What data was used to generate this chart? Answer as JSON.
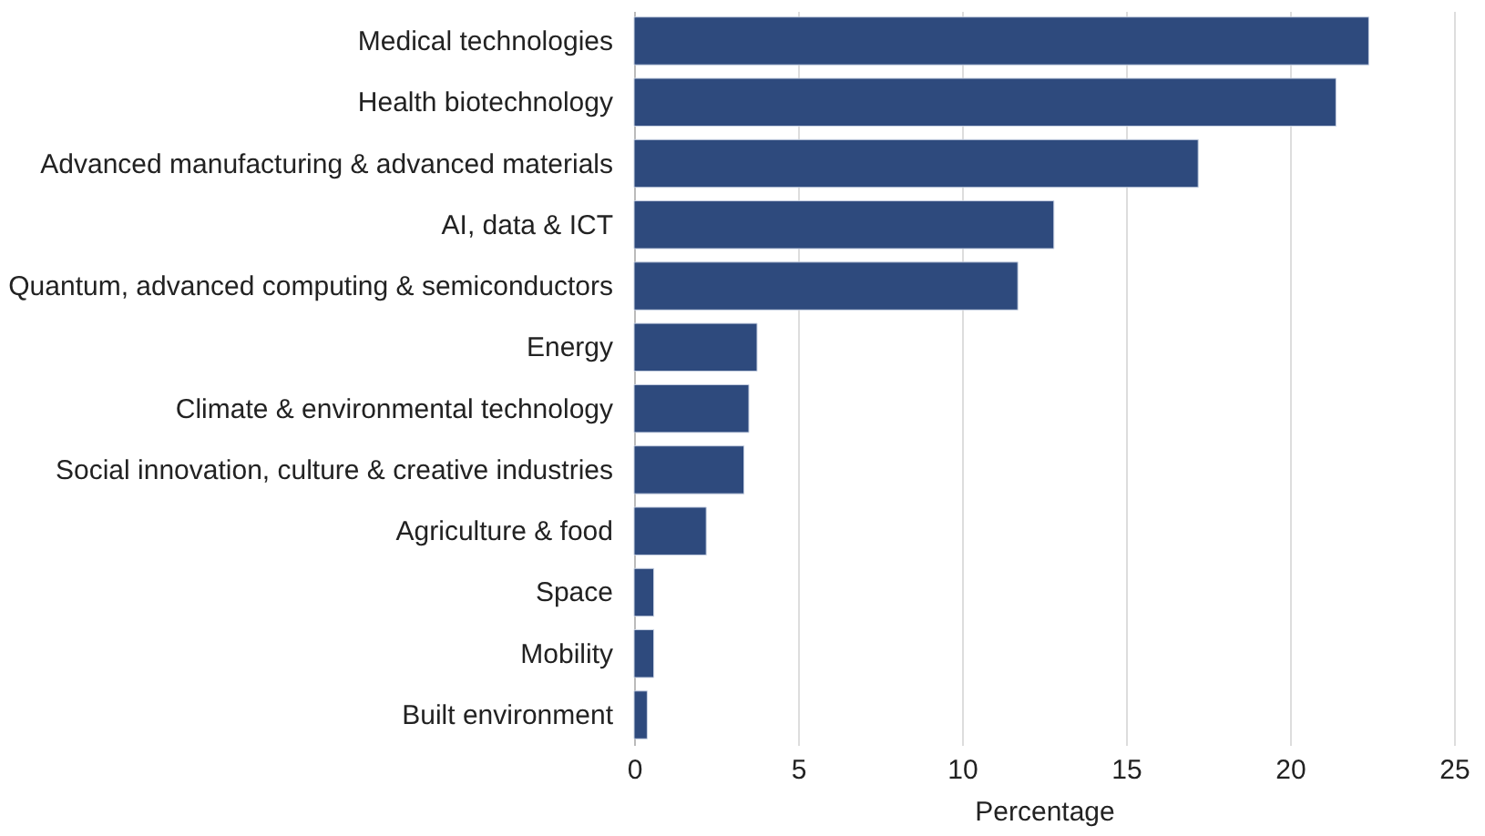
{
  "chart_data": {
    "type": "bar",
    "orientation": "horizontal",
    "xlabel": "Percentage",
    "categories": [
      "Medical technologies",
      "Health biotechnology",
      "Advanced manufacturing & advanced materials",
      "AI, data & ICT",
      "Quantum, advanced computing & semiconductors",
      "Energy",
      "Climate & environmental technology",
      "Social innovation, culture & creative industries",
      "Agriculture & food",
      "Space",
      "Mobility",
      "Built environment"
    ],
    "values": [
      22.4,
      21.4,
      17.2,
      12.8,
      11.7,
      3.75,
      3.5,
      3.35,
      2.2,
      0.6,
      0.6,
      0.4
    ],
    "color": "#2e4a7d",
    "xlim": [
      0,
      25
    ],
    "xticks": [
      0,
      5,
      10,
      15,
      20,
      25
    ],
    "grid": "x"
  }
}
